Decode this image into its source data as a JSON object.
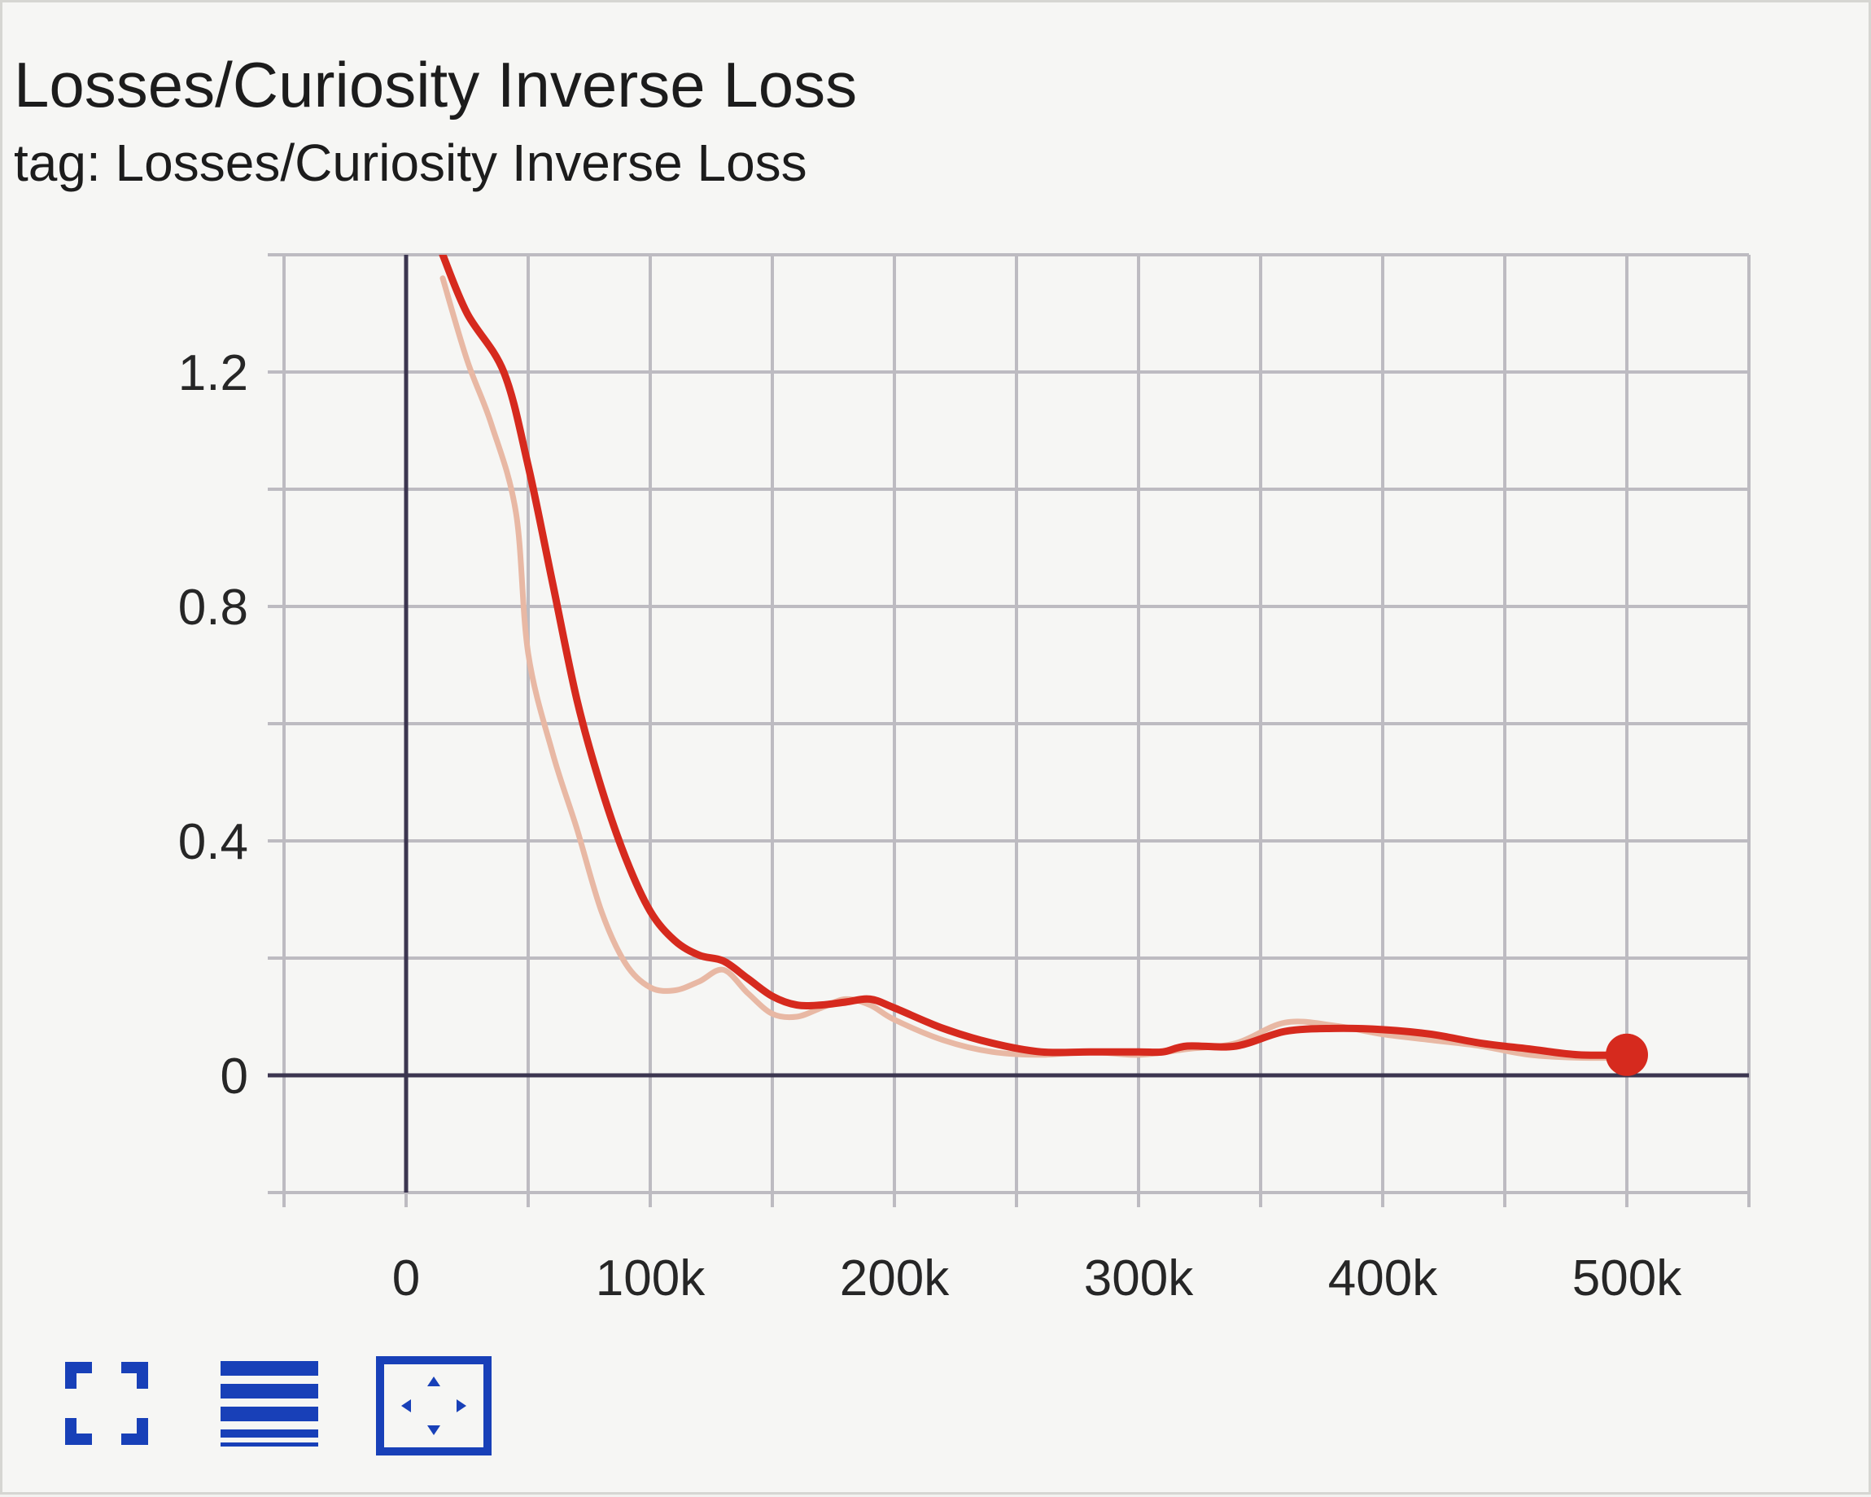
{
  "header": {
    "title": "Losses/Curiosity Inverse Loss",
    "subtitle": "tag: Losses/Curiosity Inverse Loss"
  },
  "colors": {
    "smoothed_line": "#d62a1e",
    "raw_line": "#e8b8a4",
    "grid": "#bdbbc1",
    "axis": "#3c3650",
    "icon": "#1840b8"
  },
  "toolbar": {
    "icons": [
      "fit-to-screen-icon",
      "toggle-log-scale-icon",
      "fit-domain-icon"
    ]
  },
  "chart_data": {
    "type": "line",
    "title": "Losses/Curiosity Inverse Loss",
    "subtitle": "tag: Losses/Curiosity Inverse Loss",
    "xlabel": "",
    "ylabel": "",
    "x_ticks": [
      0,
      100000,
      200000,
      300000,
      400000,
      500000
    ],
    "x_tick_labels": [
      "0",
      "100k",
      "200k",
      "300k",
      "400k",
      "500k"
    ],
    "y_ticks": [
      0,
      0.4,
      0.8,
      1.2
    ],
    "y_tick_labels": [
      "0",
      "0.4",
      "0.8",
      "1.2"
    ],
    "xlim": [
      -50000,
      550000
    ],
    "ylim": [
      -0.2,
      1.4
    ],
    "grid": true,
    "series": [
      {
        "role": "smoothed",
        "x": [
          15000,
          25000,
          40000,
          50000,
          60000,
          70000,
          80000,
          90000,
          100000,
          110000,
          120000,
          130000,
          140000,
          150000,
          160000,
          170000,
          180000,
          190000,
          200000,
          220000,
          240000,
          260000,
          280000,
          300000,
          310000,
          320000,
          340000,
          360000,
          380000,
          400000,
          420000,
          440000,
          460000,
          480000,
          500000
        ],
        "y": [
          1.4,
          1.3,
          1.2,
          1.04,
          0.84,
          0.64,
          0.49,
          0.37,
          0.28,
          0.23,
          0.205,
          0.195,
          0.165,
          0.135,
          0.12,
          0.12,
          0.125,
          0.13,
          0.115,
          0.08,
          0.055,
          0.04,
          0.04,
          0.04,
          0.04,
          0.05,
          0.05,
          0.075,
          0.08,
          0.078,
          0.07,
          0.055,
          0.045,
          0.035,
          0.035
        ]
      },
      {
        "role": "raw",
        "x": [
          15000,
          25000,
          35000,
          45000,
          50000,
          60000,
          70000,
          80000,
          90000,
          100000,
          110000,
          120000,
          130000,
          140000,
          150000,
          160000,
          170000,
          180000,
          190000,
          200000,
          220000,
          240000,
          260000,
          280000,
          300000,
          320000,
          340000,
          360000,
          380000,
          400000,
          420000,
          440000,
          460000,
          480000,
          500000
        ],
        "y": [
          1.36,
          1.22,
          1.11,
          0.96,
          0.72,
          0.55,
          0.42,
          0.28,
          0.19,
          0.15,
          0.145,
          0.16,
          0.18,
          0.14,
          0.105,
          0.1,
          0.115,
          0.13,
          0.12,
          0.095,
          0.06,
          0.04,
          0.035,
          0.04,
          0.035,
          0.045,
          0.055,
          0.09,
          0.085,
          0.07,
          0.06,
          0.05,
          0.035,
          0.03,
          0.03
        ]
      }
    ],
    "last_point": {
      "x": 500000,
      "y": 0.035
    }
  }
}
